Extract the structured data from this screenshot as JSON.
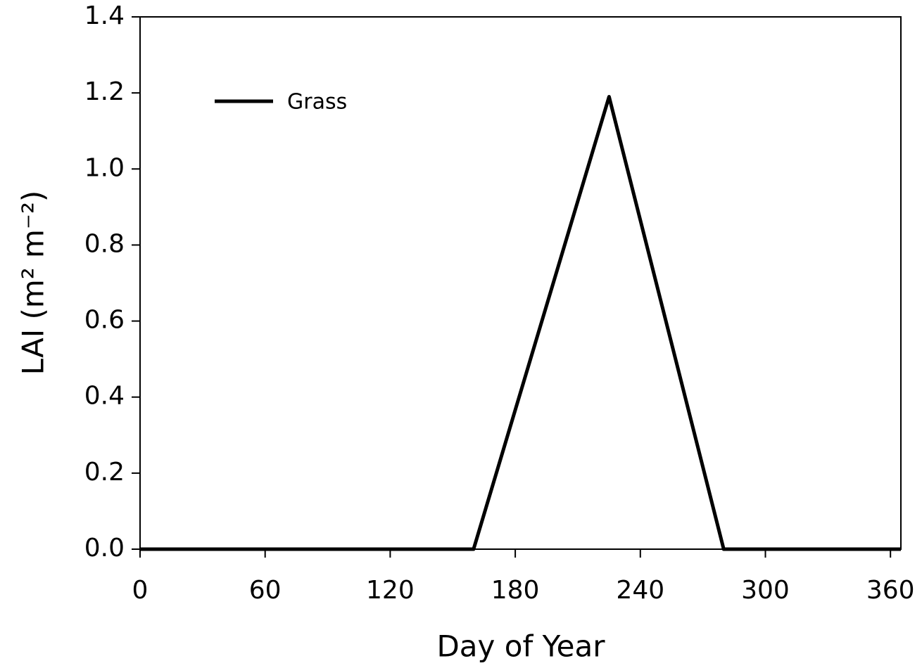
{
  "chart_data": {
    "type": "line",
    "xlabel": "Day of Year",
    "ylabel": "LAI (m² m⁻²)",
    "x": [
      0,
      160,
      225,
      280,
      365
    ],
    "series": [
      {
        "name": "Grass",
        "color": "#000000",
        "values": [
          0,
          0,
          1.19,
          0,
          0
        ]
      }
    ],
    "xlim": [
      0,
      365
    ],
    "xticks": [
      0,
      60,
      120,
      180,
      240,
      300,
      360
    ],
    "ylim": [
      0,
      1.4
    ],
    "yticks": [
      {
        "value": 0,
        "label": "0.0"
      },
      0.2,
      0.4,
      0.6,
      0.8,
      {
        "value": 1,
        "label": "1.0"
      },
      1.2,
      1.4
    ],
    "grid": false,
    "legend": "upper left"
  }
}
